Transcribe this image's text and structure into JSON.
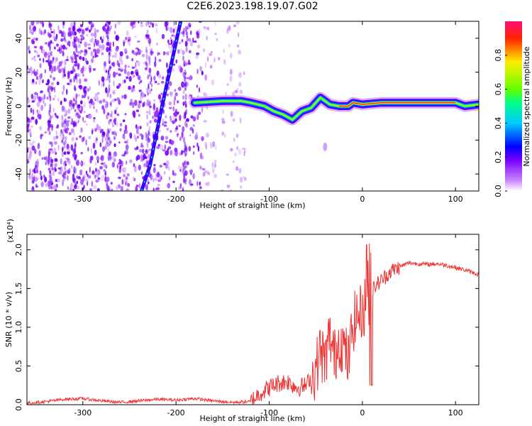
{
  "title": "C2E6.2023.198.19.07.G02",
  "chart_data": [
    {
      "type": "heatmap",
      "xlabel": "Height of straight line (km)",
      "ylabel": "Frequency (Hz)",
      "xlim": [
        -360,
        125
      ],
      "ylim": [
        -50,
        50
      ],
      "x_ticks": [
        -300,
        -200,
        -100,
        0,
        100
      ],
      "x_tick_labels": [
        "-300",
        "-200",
        "-100",
        "0",
        "100"
      ],
      "y_ticks": [
        40,
        20,
        0,
        -20,
        -40
      ],
      "y_tick_labels": [
        "40",
        "20",
        "0",
        "-20",
        "-40"
      ],
      "colorbar": {
        "label": "Normalized spectral amplitude",
        "range": [
          0,
          1
        ],
        "ticks": [
          0.0,
          0.2,
          0.4,
          0.6,
          0.8
        ],
        "tick_labels": [
          "0.0",
          "0.2",
          "0.4",
          "0.6",
          "0.8"
        ],
        "colors": [
          "#ffffff",
          "#cc88ff",
          "#7a00ff",
          "#0000ff",
          "#00ccff",
          "#00ff88",
          "#66ff00",
          "#ffee00",
          "#ff2200",
          "#ff1177"
        ]
      },
      "features": {
        "noise_region_x": [
          -360,
          -145
        ],
        "diagonal_track": [
          [
            -237,
            -50
          ],
          [
            -228,
            -35
          ],
          [
            -215,
            0
          ],
          [
            -205,
            25
          ],
          [
            -195,
            50
          ]
        ],
        "signal_track": [
          [
            -180,
            2
          ],
          [
            -150,
            3
          ],
          [
            -130,
            3
          ],
          [
            -120,
            2
          ],
          [
            -105,
            0
          ],
          [
            -95,
            -3
          ],
          [
            -85,
            -5
          ],
          [
            -75,
            -8
          ],
          [
            -65,
            -3
          ],
          [
            -55,
            -1
          ],
          [
            -45,
            5
          ],
          [
            -35,
            1
          ],
          [
            -25,
            0
          ],
          [
            -15,
            0
          ],
          [
            -10,
            2
          ],
          [
            0,
            1
          ],
          [
            20,
            2
          ],
          [
            50,
            2
          ],
          [
            80,
            2
          ],
          [
            100,
            2
          ],
          [
            110,
            0
          ],
          [
            125,
            1
          ]
        ]
      }
    },
    {
      "type": "line",
      "xlabel": "Height of straight line (km)",
      "ylabel": "SNR (10 * v/v)",
      "y_multiplier": "(x10⁴)",
      "xlim": [
        -360,
        125
      ],
      "ylim": [
        0,
        2.2
      ],
      "x_ticks": [
        -300,
        -200,
        -100,
        0,
        100
      ],
      "x_tick_labels": [
        "-300",
        "-200",
        "-100",
        "0",
        "100"
      ],
      "y_ticks": [
        0.0,
        0.5,
        1.0,
        1.5,
        2.0
      ],
      "y_tick_labels": [
        "0.0",
        "0.5",
        "1.0",
        "1.5",
        "2.0"
      ],
      "series": [
        {
          "color": "#ee3333",
          "x": [
            -360,
            -340,
            -320,
            -300,
            -280,
            -260,
            -240,
            -220,
            -200,
            -180,
            -160,
            -140,
            -120,
            -110,
            -100,
            -90,
            -80,
            -70,
            -60,
            -50,
            -45,
            -40,
            -35,
            -30,
            -25,
            -20,
            -15,
            -10,
            -5,
            0,
            5,
            10,
            15,
            20,
            30,
            40,
            50,
            60,
            70,
            80,
            90,
            100,
            110,
            125
          ],
          "y": [
            0.02,
            0.04,
            0.07,
            0.08,
            0.05,
            0.03,
            0.05,
            0.07,
            0.06,
            0.08,
            0.05,
            0.03,
            0.04,
            0.15,
            0.22,
            0.28,
            0.3,
            0.22,
            0.25,
            0.45,
            0.7,
            0.55,
            0.9,
            0.6,
            0.85,
            0.75,
            0.55,
            1.05,
            1.15,
            1.2,
            1.35,
            1.45,
            1.55,
            1.6,
            1.72,
            1.78,
            1.83,
            1.82,
            1.81,
            1.82,
            1.8,
            1.77,
            1.74,
            1.68
          ]
        }
      ]
    }
  ]
}
